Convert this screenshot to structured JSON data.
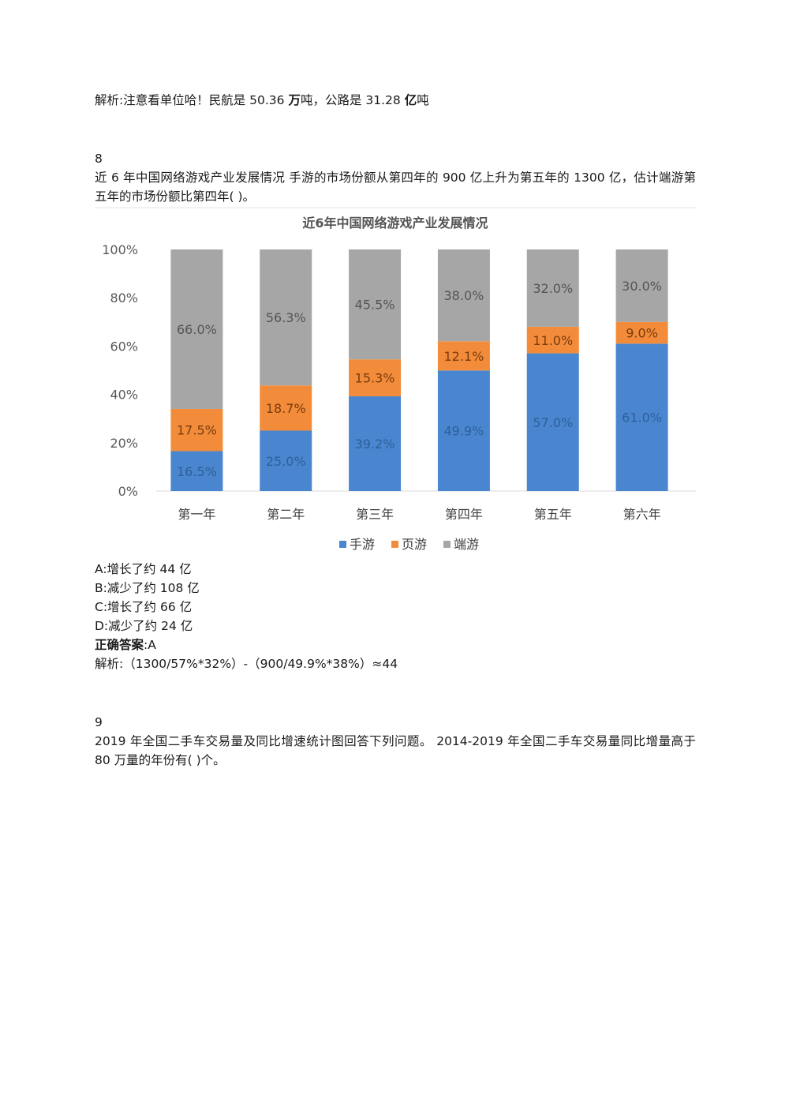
{
  "analysis_prev": {
    "prefix": "解析:注意看单位哈！民航是 50.36 ",
    "unit1": "万",
    "mid": "吨，公路是 31.28 ",
    "unit2": "亿",
    "suffix": "吨"
  },
  "q8": {
    "number": "8",
    "question": "近 6 年中国网络游戏产业发展情况  手游的市场份额从第四年的 900 亿上升为第五年的 1300 亿，估计端游第五年的市场份额比第四年(  )。",
    "options": [
      "A:增长了约 44 亿",
      "B:减少了约 108 亿",
      "C:增长了约 66 亿",
      "D:减少了约 24 亿"
    ],
    "answer_label": "正确答案",
    "answer_value": ":A",
    "analysis": "解析:（1300/57%*32%）-（900/49.9%*38%）≈44"
  },
  "q9": {
    "number": "9",
    "question": "2019 年全国二手车交易量及同比增速统计图回答下列问题。  2014-2019 年全国二手车交易量同比增量高于 80 万量的年份有(  )个。"
  },
  "chart_data": {
    "type": "bar",
    "stacked": true,
    "title": "近6年中国网络游戏产业发展情况",
    "categories": [
      "第一年",
      "第二年",
      "第三年",
      "第四年",
      "第五年",
      "第六年"
    ],
    "series": [
      {
        "name": "手游",
        "color": "#4a86cf",
        "values": [
          16.5,
          25.0,
          39.2,
          49.9,
          57.0,
          61.0
        ],
        "labels": [
          "16.5%",
          "25.0%",
          "39.2%",
          "49.9%",
          "57.0%",
          "61.0%"
        ]
      },
      {
        "name": "页游",
        "color": "#f28c3a",
        "values": [
          17.5,
          18.7,
          15.3,
          12.1,
          11.0,
          9.0
        ],
        "labels": [
          "17.5%",
          "18.7%",
          "15.3%",
          "12.1%",
          "11.0%",
          "9.0%"
        ]
      },
      {
        "name": "端游",
        "color": "#a6a6a6",
        "values": [
          66.0,
          56.3,
          45.5,
          38.0,
          32.0,
          30.0
        ],
        "labels": [
          "66.0%",
          "56.3%",
          "45.5%",
          "38.0%",
          "32.0%",
          "30.0%"
        ]
      }
    ],
    "yticks": [
      "0%",
      "20%",
      "40%",
      "60%",
      "80%",
      "100%"
    ],
    "ylim": [
      0,
      100
    ],
    "legend": "bottom"
  }
}
